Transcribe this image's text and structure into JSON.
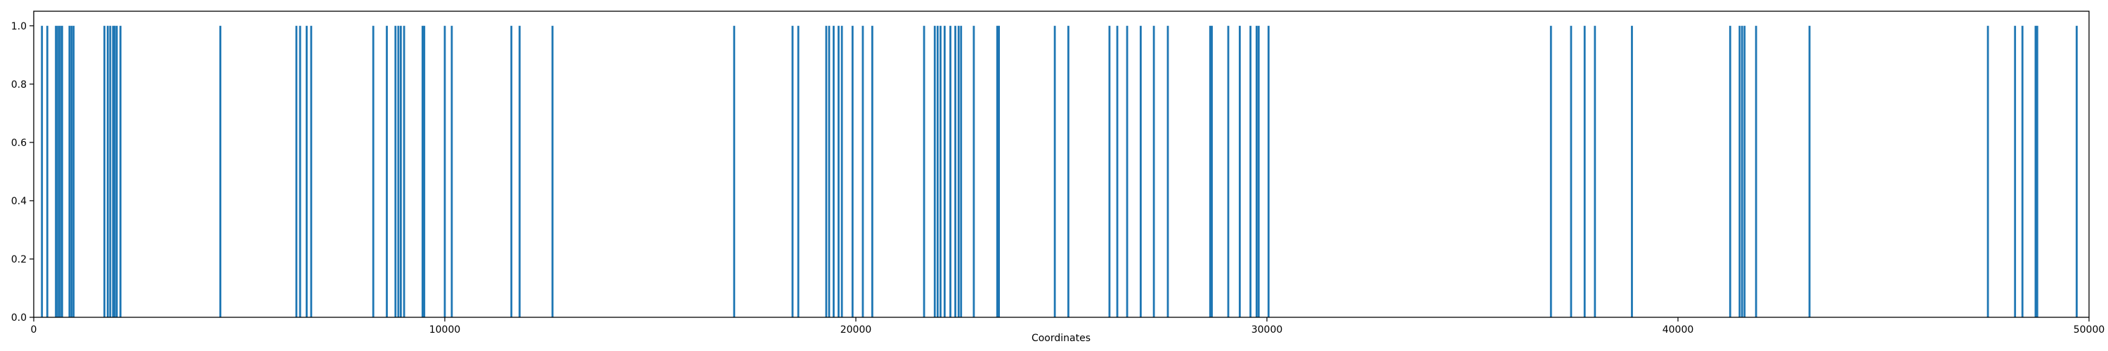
{
  "chart_data": {
    "type": "bar",
    "title": "",
    "xlabel": "Coordinates",
    "ylabel": "",
    "xlim": [
      0,
      50000
    ],
    "ylim": [
      0.0,
      1.05
    ],
    "grid": false,
    "legend": "none",
    "bar_color": "#1f77b4",
    "x_ticks": [
      0,
      10000,
      20000,
      30000,
      40000,
      50000
    ],
    "x_tick_labels": [
      "0",
      "10000",
      "20000",
      "30000",
      "40000",
      "50000"
    ],
    "y_ticks": [
      0.0,
      0.2,
      0.4,
      0.6,
      0.8,
      1.0
    ],
    "y_tick_labels": [
      "0.0",
      "0.2",
      "0.4",
      "0.6",
      "0.8",
      "1.0"
    ],
    "x": [
      200,
      330,
      540,
      590,
      640,
      690,
      870,
      920,
      970,
      1720,
      1800,
      1860,
      1930,
      1970,
      2020,
      2110,
      4540,
      6390,
      6480,
      6640,
      6750,
      8260,
      8590,
      8800,
      8870,
      8930,
      9010,
      9460,
      9500,
      10000,
      10170,
      11620,
      11820,
      12620,
      17040,
      18460,
      18600,
      19280,
      19350,
      19460,
      19580,
      19660,
      19920,
      20170,
      20400,
      21660,
      21920,
      21990,
      22060,
      22160,
      22300,
      22420,
      22500,
      22560,
      22870,
      23440,
      23480,
      24840,
      25170,
      26170,
      26360,
      26600,
      26930,
      27250,
      27590,
      28620,
      28660,
      29060,
      29340,
      29600,
      29750,
      29800,
      30040,
      36910,
      37400,
      37730,
      37980,
      38880,
      41270,
      41500,
      41560,
      41620,
      41900,
      43200,
      47540,
      48200,
      48380,
      48700,
      48740,
      49700
    ],
    "values": [
      1,
      1,
      1,
      1,
      1,
      1,
      1,
      1,
      1,
      1,
      1,
      1,
      1,
      1,
      1,
      1,
      1,
      1,
      1,
      1,
      1,
      1,
      1,
      1,
      1,
      1,
      1,
      1,
      1,
      1,
      1,
      1,
      1,
      1,
      1,
      1,
      1,
      1,
      1,
      1,
      1,
      1,
      1,
      1,
      1,
      1,
      1,
      1,
      1,
      1,
      1,
      1,
      1,
      1,
      1,
      1,
      1,
      1,
      1,
      1,
      1,
      1,
      1,
      1,
      1,
      1,
      1,
      1,
      1,
      1,
      1,
      1,
      1,
      1,
      1,
      1,
      1,
      1,
      1,
      1,
      1,
      1,
      1,
      1,
      1,
      1,
      1,
      1,
      1,
      1
    ]
  }
}
